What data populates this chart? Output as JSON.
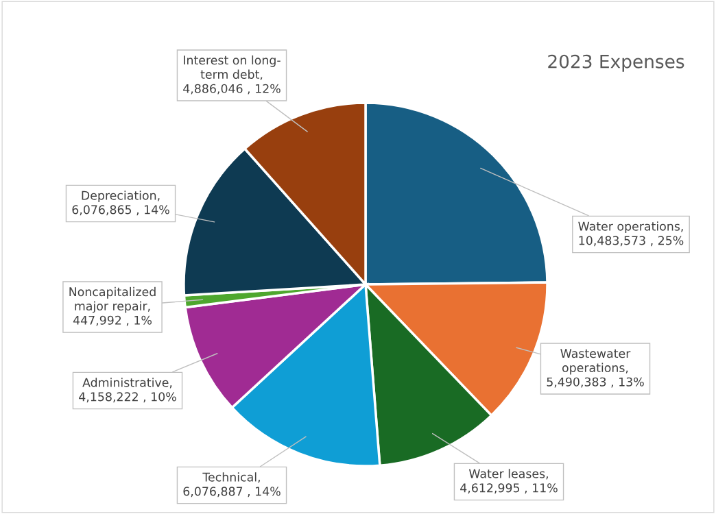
{
  "chart_data": {
    "type": "pie",
    "title": "2023 Expenses",
    "categories": [
      "Water operations",
      "Wastewater operations",
      "Water leases",
      "Technical",
      "Administrative   ",
      "Noncapitalized major repair",
      "Depreciation",
      "Interest on long-term debt"
    ],
    "values": [
      10483573,
      5490383,
      4612995,
      6076887,
      4158222,
      447992,
      6076865,
      4886046
    ],
    "value_labels": [
      ",\n10,483,573 , 25%",
      ",\n5,490,383 , 13%",
      ",\n4,612,995 , 11%",
      ",\n6,076,887 , 14%",
      ",\n4,158,222 , 10%",
      ",\n447,992 , 1%",
      ",\n6,076,865 , 14%",
      ",\n4,886,046 , 12%"
    ],
    "colors": [
      "#175e84",
      "#e97132",
      "#196b24",
      "#0f9ed5",
      "#a02b93",
      "#4ea72e",
      "#0e3a52",
      "#983f0e"
    ],
    "legend": false
  }
}
